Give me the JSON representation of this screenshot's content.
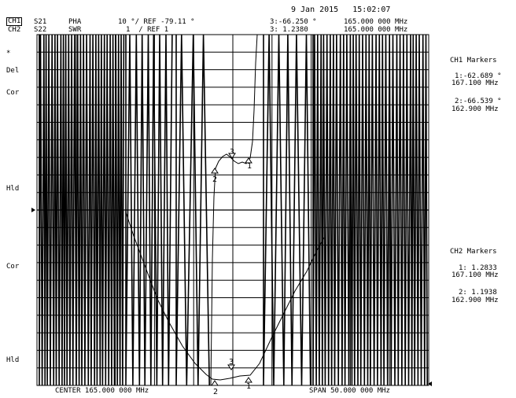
{
  "header": {
    "date_time": "9 Jan 2015   15:02:07",
    "ch1": {
      "name": "CH1",
      "param": "S21",
      "format": "PHA",
      "scale": "10 °/ REF -79.11 °",
      "marker3_value": "3:-66.250 °",
      "marker3_freq": "165.000 000 MHz"
    },
    "ch2": {
      "name": "CH2",
      "param": "S22",
      "format": "SWR",
      "scale": "1  / REF 1",
      "marker3_value": "3: 1.2380",
      "marker3_freq": "165.000 000 MHz"
    }
  },
  "left_annotations": {
    "ch1": [
      "*",
      "Del",
      "Cor",
      "Hld"
    ],
    "ch2": [
      "Cor",
      "Hld"
    ]
  },
  "ch1_markers": {
    "title": "CH1 Markers",
    "items": [
      {
        "value": "1:-62.689 °",
        "freq": "167.100 MHz"
      },
      {
        "value": "2:-66.539 °",
        "freq": "162.900 MHz"
      }
    ]
  },
  "ch2_markers": {
    "title": "CH2 Markers",
    "items": [
      {
        "value": "1: 1.2833",
        "freq": "167.100 MHz"
      },
      {
        "value": "2: 1.1938",
        "freq": "162.900 MHz"
      }
    ]
  },
  "footer": {
    "center": "CENTER 165.000 000 MHz",
    "span": "SPAN 50.000 000 MHz"
  },
  "marker_numbers": {
    "m1": "1",
    "m2": "2",
    "m3": "3"
  },
  "colors": {
    "trace": "#000000",
    "grid": "#000000",
    "background": "#ffffff"
  }
}
